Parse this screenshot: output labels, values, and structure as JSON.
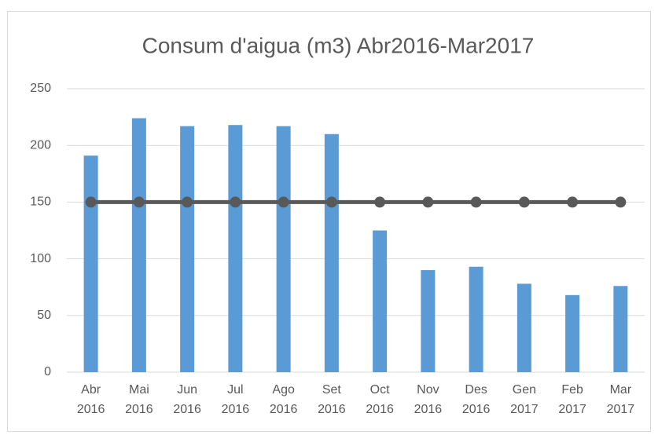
{
  "chart_data": {
    "type": "bar-line",
    "title": "Consum d'aigua (m3) Abr2016-Mar2017",
    "categories": [
      [
        "Abr",
        "2016"
      ],
      [
        "Mai",
        "2016"
      ],
      [
        "Jun",
        "2016"
      ],
      [
        "Jul",
        "2016"
      ],
      [
        "Ago",
        "2016"
      ],
      [
        "Set",
        "2016"
      ],
      [
        "Oct",
        "2016"
      ],
      [
        "Nov",
        "2016"
      ],
      [
        "Des",
        "2016"
      ],
      [
        "Gen",
        "2017"
      ],
      [
        "Feb",
        "2017"
      ],
      [
        "Mar",
        "2017"
      ]
    ],
    "series": [
      {
        "type": "bar",
        "color": "#5b9bd5",
        "values": [
          191,
          224,
          217,
          218,
          217,
          210,
          125,
          90,
          93,
          78,
          68,
          76
        ]
      },
      {
        "type": "line",
        "color": "#595959",
        "values": [
          150,
          150,
          150,
          150,
          150,
          150,
          150,
          150,
          150,
          150,
          150,
          150
        ]
      }
    ],
    "ylim": [
      0,
      250
    ],
    "yticks": [
      0,
      50,
      100,
      150,
      200,
      250
    ],
    "grid": true
  }
}
